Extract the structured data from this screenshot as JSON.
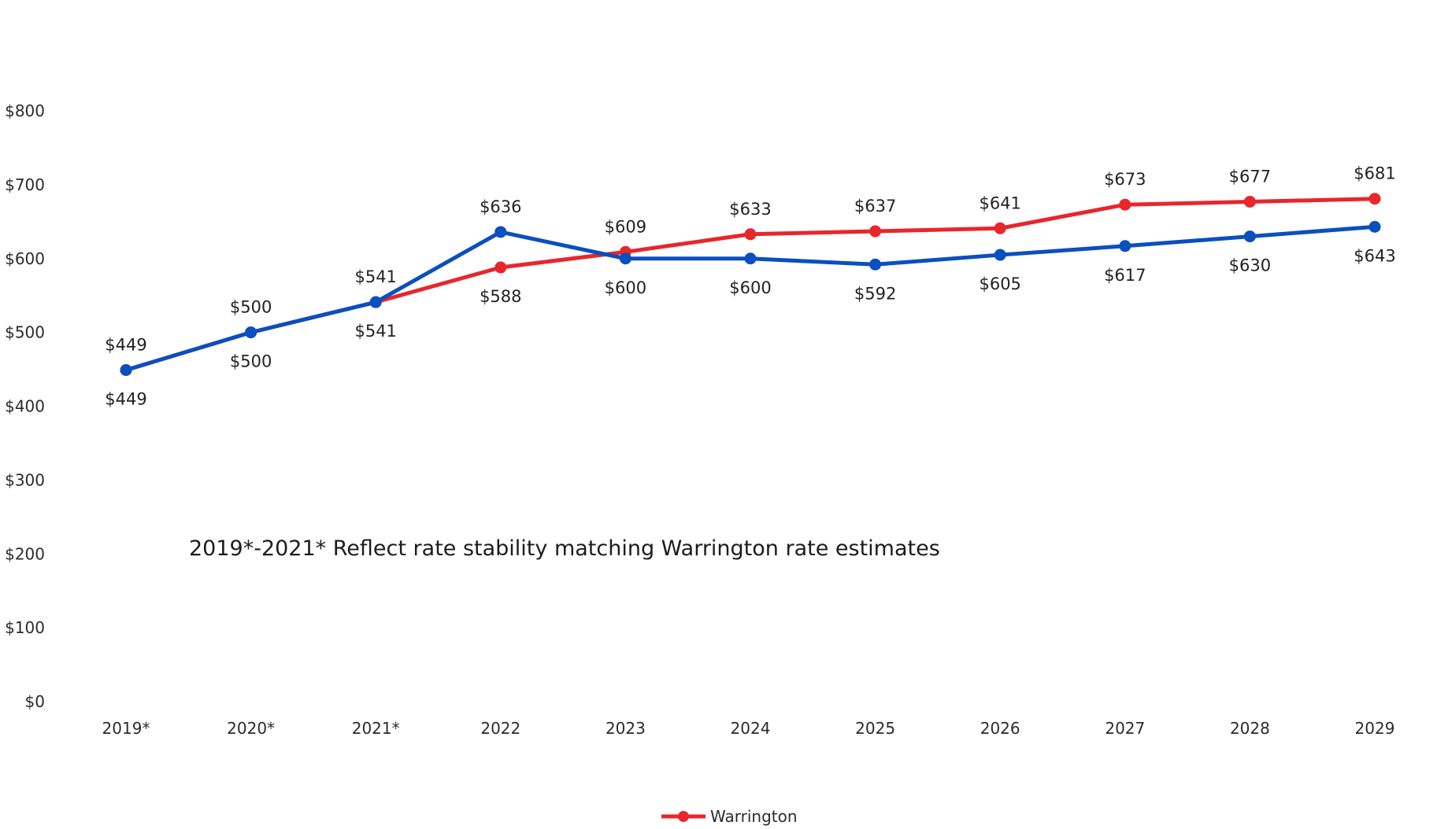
{
  "chart_data": {
    "type": "line",
    "categories": [
      "2019*",
      "2020*",
      "2021*",
      "2022",
      "2023",
      "2024",
      "2025",
      "2026",
      "2027",
      "2028",
      "2029"
    ],
    "series": [
      {
        "name": "Warrington",
        "color": "#e8262b",
        "values": [
          449,
          500,
          541,
          588,
          609,
          633,
          637,
          641,
          673,
          677,
          681
        ],
        "labels": [
          "$449",
          "$500",
          "$541",
          "$588",
          "$609",
          "$633",
          "$637",
          "$641",
          "$673",
          "$677",
          "$681"
        ],
        "label_position": [
          "above",
          "above",
          "above",
          "below",
          "above",
          "above",
          "above",
          "above",
          "above",
          "above",
          "above"
        ]
      },
      {
        "name": "",
        "color": "#0a4fbf",
        "values": [
          449,
          500,
          541,
          636,
          600,
          600,
          592,
          605,
          617,
          630,
          643
        ],
        "labels": [
          "$449",
          "$500",
          "$541",
          "$636",
          "$600",
          "$600",
          "$592",
          "$605",
          "$617",
          "$630",
          "$643"
        ],
        "label_position": [
          "below",
          "below",
          "below",
          "above",
          "below",
          "below",
          "below",
          "below",
          "below",
          "below",
          "below"
        ]
      }
    ],
    "y_ticks": [
      "$0",
      "$100",
      "$200",
      "$300",
      "$400",
      "$500",
      "$600",
      "$700",
      "$800"
    ],
    "ylim": [
      0,
      800
    ],
    "grid": false,
    "legend": {
      "position": "bottom",
      "entries": [
        "Warrington"
      ]
    },
    "annotation": "2019*-2021* Reflect rate stability matching Warrington rate estimates",
    "title": "",
    "xlabel": "",
    "ylabel": ""
  }
}
